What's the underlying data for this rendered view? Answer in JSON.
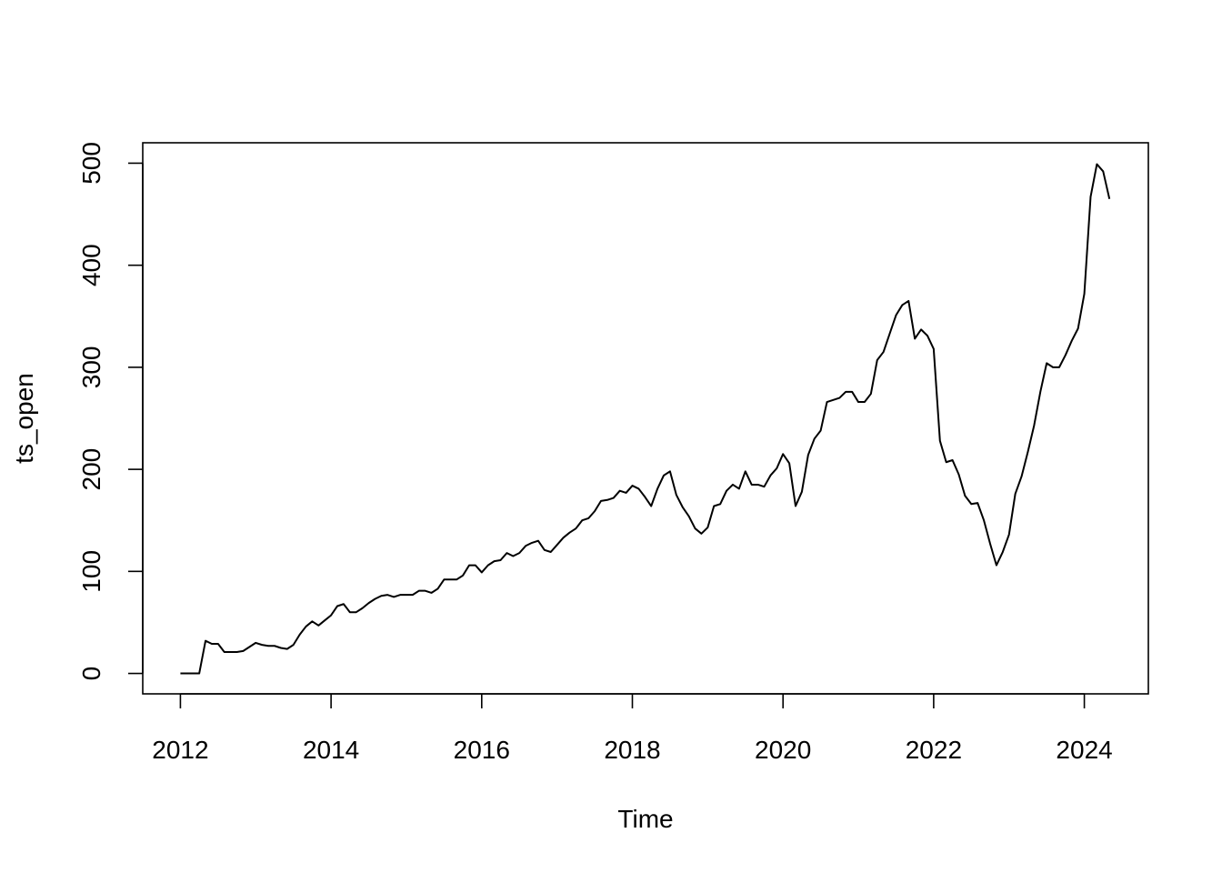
{
  "chart_data": {
    "type": "line",
    "title": "",
    "xlabel": "Time",
    "ylabel": "ts_open",
    "xlim": [
      2011.5,
      2024.85
    ],
    "ylim": [
      -20,
      520
    ],
    "x_ticks": [
      2012,
      2014,
      2016,
      2018,
      2020,
      2022,
      2024
    ],
    "x_tick_labels": [
      "2012",
      "2014",
      "2016",
      "2018",
      "2020",
      "2022",
      "2024"
    ],
    "y_ticks": [
      0,
      100,
      200,
      300,
      400,
      500
    ],
    "y_tick_labels": [
      "0",
      "100",
      "200",
      "300",
      "400",
      "500"
    ],
    "grid": false,
    "legend": "none",
    "series": [
      {
        "name": "ts_open",
        "start": 2012.0,
        "frequency": 12,
        "values": [
          0,
          0,
          0,
          0,
          32,
          29,
          29,
          21,
          21,
          21,
          22,
          26,
          30,
          28,
          27,
          27,
          25,
          24,
          28,
          38,
          46,
          51,
          47,
          52,
          57,
          66,
          68,
          60,
          60,
          64,
          69,
          73,
          76,
          77,
          75,
          77,
          77,
          77,
          81,
          81,
          79,
          83,
          92,
          92,
          92,
          96,
          106,
          106,
          99,
          106,
          110,
          111,
          118,
          115,
          118,
          125,
          128,
          130,
          121,
          119,
          126,
          133,
          138,
          142,
          150,
          152,
          159,
          169,
          170,
          172,
          179,
          177,
          184,
          181,
          173,
          164,
          181,
          194,
          198,
          175,
          163,
          154,
          142,
          137,
          143,
          164,
          166,
          179,
          185,
          181,
          198,
          185,
          185,
          183,
          194,
          201,
          215,
          206,
          164,
          178,
          214,
          230,
          238,
          266,
          268,
          270,
          276,
          276,
          266,
          266,
          274,
          307,
          315,
          333,
          351,
          361,
          365,
          328,
          337,
          331,
          318,
          228,
          207,
          209,
          195,
          174,
          166,
          167,
          150,
          127,
          106,
          119,
          136,
          176,
          193,
          217,
          243,
          276,
          304,
          300,
          300,
          312,
          326,
          338,
          372,
          467,
          499,
          492,
          465
        ]
      }
    ]
  }
}
